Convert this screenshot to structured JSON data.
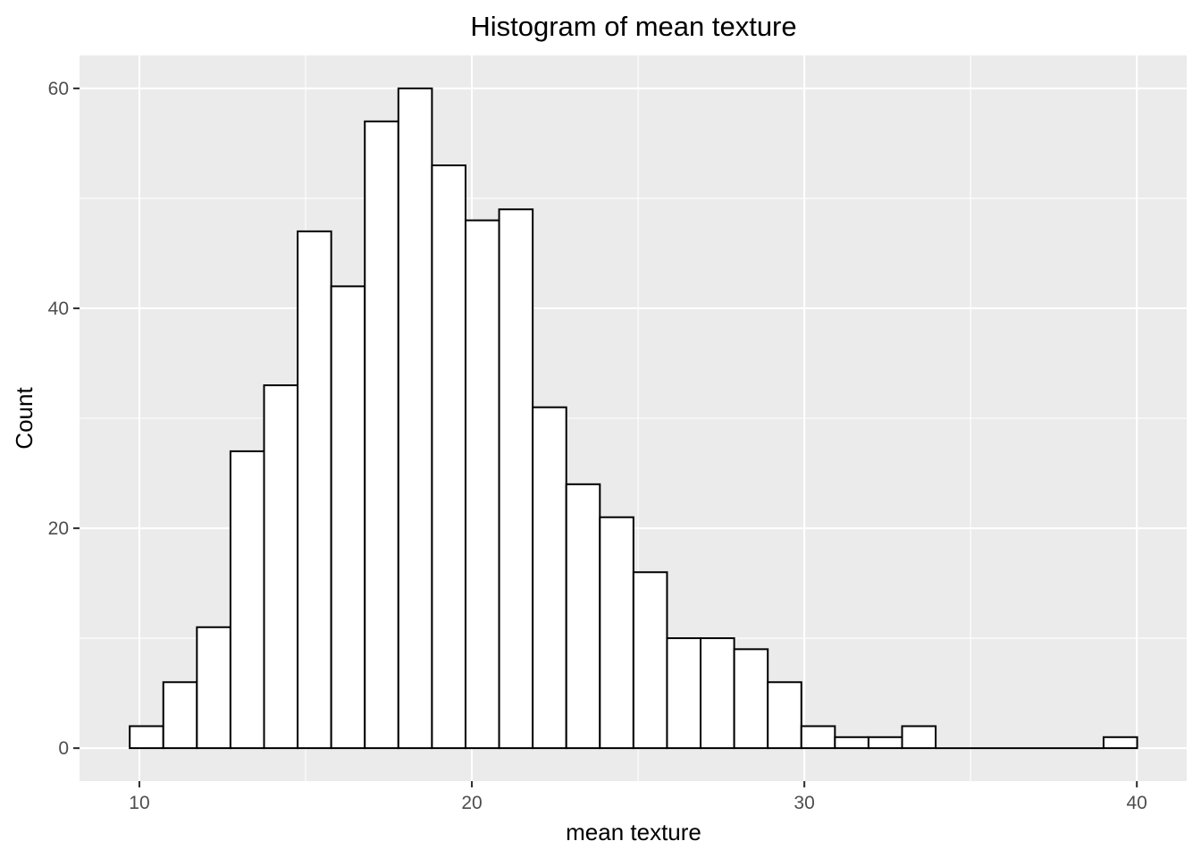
{
  "chart_data": {
    "type": "bar",
    "title": "Histogram of mean texture",
    "xlabel": "mean texture",
    "ylabel": "Count",
    "bin_edges": [
      9.71,
      10.72,
      11.73,
      12.74,
      13.75,
      14.76,
      15.77,
      16.78,
      17.79,
      18.8,
      19.81,
      20.82,
      21.83,
      22.84,
      23.85,
      24.86,
      25.87,
      26.88,
      27.89,
      28.9,
      29.91,
      30.92,
      31.93,
      32.94,
      33.95,
      34.96,
      35.97,
      36.98,
      37.99,
      39.0,
      40.01
    ],
    "values": [
      2,
      6,
      11,
      27,
      33,
      47,
      42,
      57,
      60,
      53,
      48,
      49,
      31,
      24,
      21,
      16,
      10,
      10,
      9,
      6,
      2,
      1,
      1,
      2,
      0,
      0,
      0,
      0,
      0,
      1
    ],
    "xlim": [
      8.2,
      41.5
    ],
    "ylim": [
      -3,
      63
    ],
    "x_ticks": [
      10,
      20,
      30,
      40
    ],
    "x_tick_labels": [
      "10",
      "20",
      "30",
      "40"
    ],
    "x_minor_ticks": [
      15,
      25,
      35
    ],
    "y_ticks": [
      0,
      20,
      40,
      60
    ],
    "y_tick_labels": [
      "0",
      "20",
      "40",
      "60"
    ],
    "y_minor_ticks": [
      10,
      30,
      50
    ],
    "grid": true,
    "legend": "none",
    "colors": {
      "panel": "#ebebeb",
      "grid": "#ffffff",
      "bar_fill": "#ffffff",
      "bar_outline": "#000000",
      "tick_text": "#4d4d4d"
    }
  }
}
